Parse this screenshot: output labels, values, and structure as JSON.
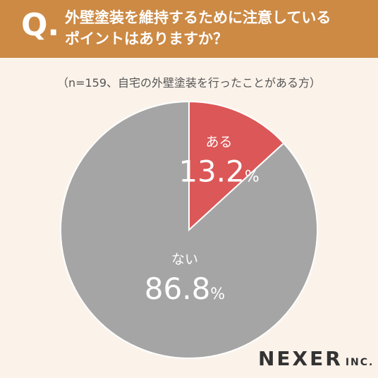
{
  "header": {
    "q_mark": "Q.",
    "question_line1": "外壁塗装を維持するために注意している",
    "question_line2": "ポイントはありますか？"
  },
  "note": "（n=159、自宅の外壁塗装を行ったことがある方）",
  "chart_data": {
    "type": "pie",
    "title": "外壁塗装を維持するために注意しているポイントはありますか？",
    "slices": [
      {
        "label": "ある",
        "value": 13.2,
        "value_text": "13.2",
        "unit": "%",
        "color": "#dc5757"
      },
      {
        "label": "ない",
        "value": 86.8,
        "value_text": "86.8",
        "unit": "%",
        "color": "#a5a5a5"
      }
    ],
    "start_angle_deg": 0,
    "direction": "clockwise"
  },
  "brand": {
    "name": "NEXER",
    "suffix": "INC."
  }
}
